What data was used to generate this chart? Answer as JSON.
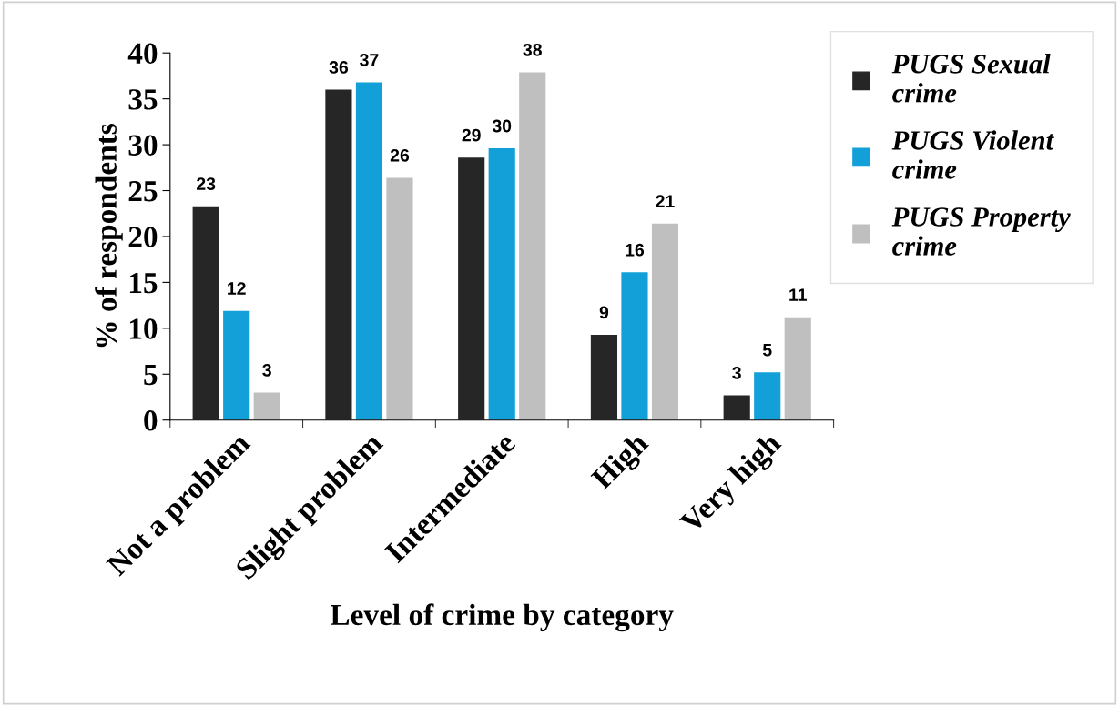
{
  "chart_data": {
    "type": "bar",
    "xlabel": "Level of crime by category",
    "ylabel": "% of respondents",
    "categories": [
      "Not a problem",
      "Slight problem",
      "Intermediate",
      "High",
      "Very high"
    ],
    "series": [
      {
        "name": "PUGS Sexual crime",
        "color": "#262626",
        "values": [
          23.3,
          36.0,
          28.6,
          9.3,
          2.7
        ],
        "value_labels": [
          "23",
          "36",
          "29",
          "9",
          "3"
        ]
      },
      {
        "name": "PUGS Violent crime",
        "color": "#139fd8",
        "values": [
          11.9,
          36.8,
          29.6,
          16.1,
          5.2
        ],
        "value_labels": [
          "12",
          "37",
          "30",
          "16",
          "5"
        ]
      },
      {
        "name": "PUGS Property crime",
        "color": "#bfbfbf",
        "values": [
          3.0,
          26.4,
          37.9,
          21.4,
          11.2
        ],
        "value_labels": [
          "3",
          "26",
          "38",
          "21",
          "11"
        ]
      }
    ],
    "ylim": [
      0,
      40
    ],
    "yticks": [
      0,
      5,
      10,
      15,
      20,
      25,
      30,
      35,
      40
    ],
    "grid": false,
    "legend": "top right"
  }
}
